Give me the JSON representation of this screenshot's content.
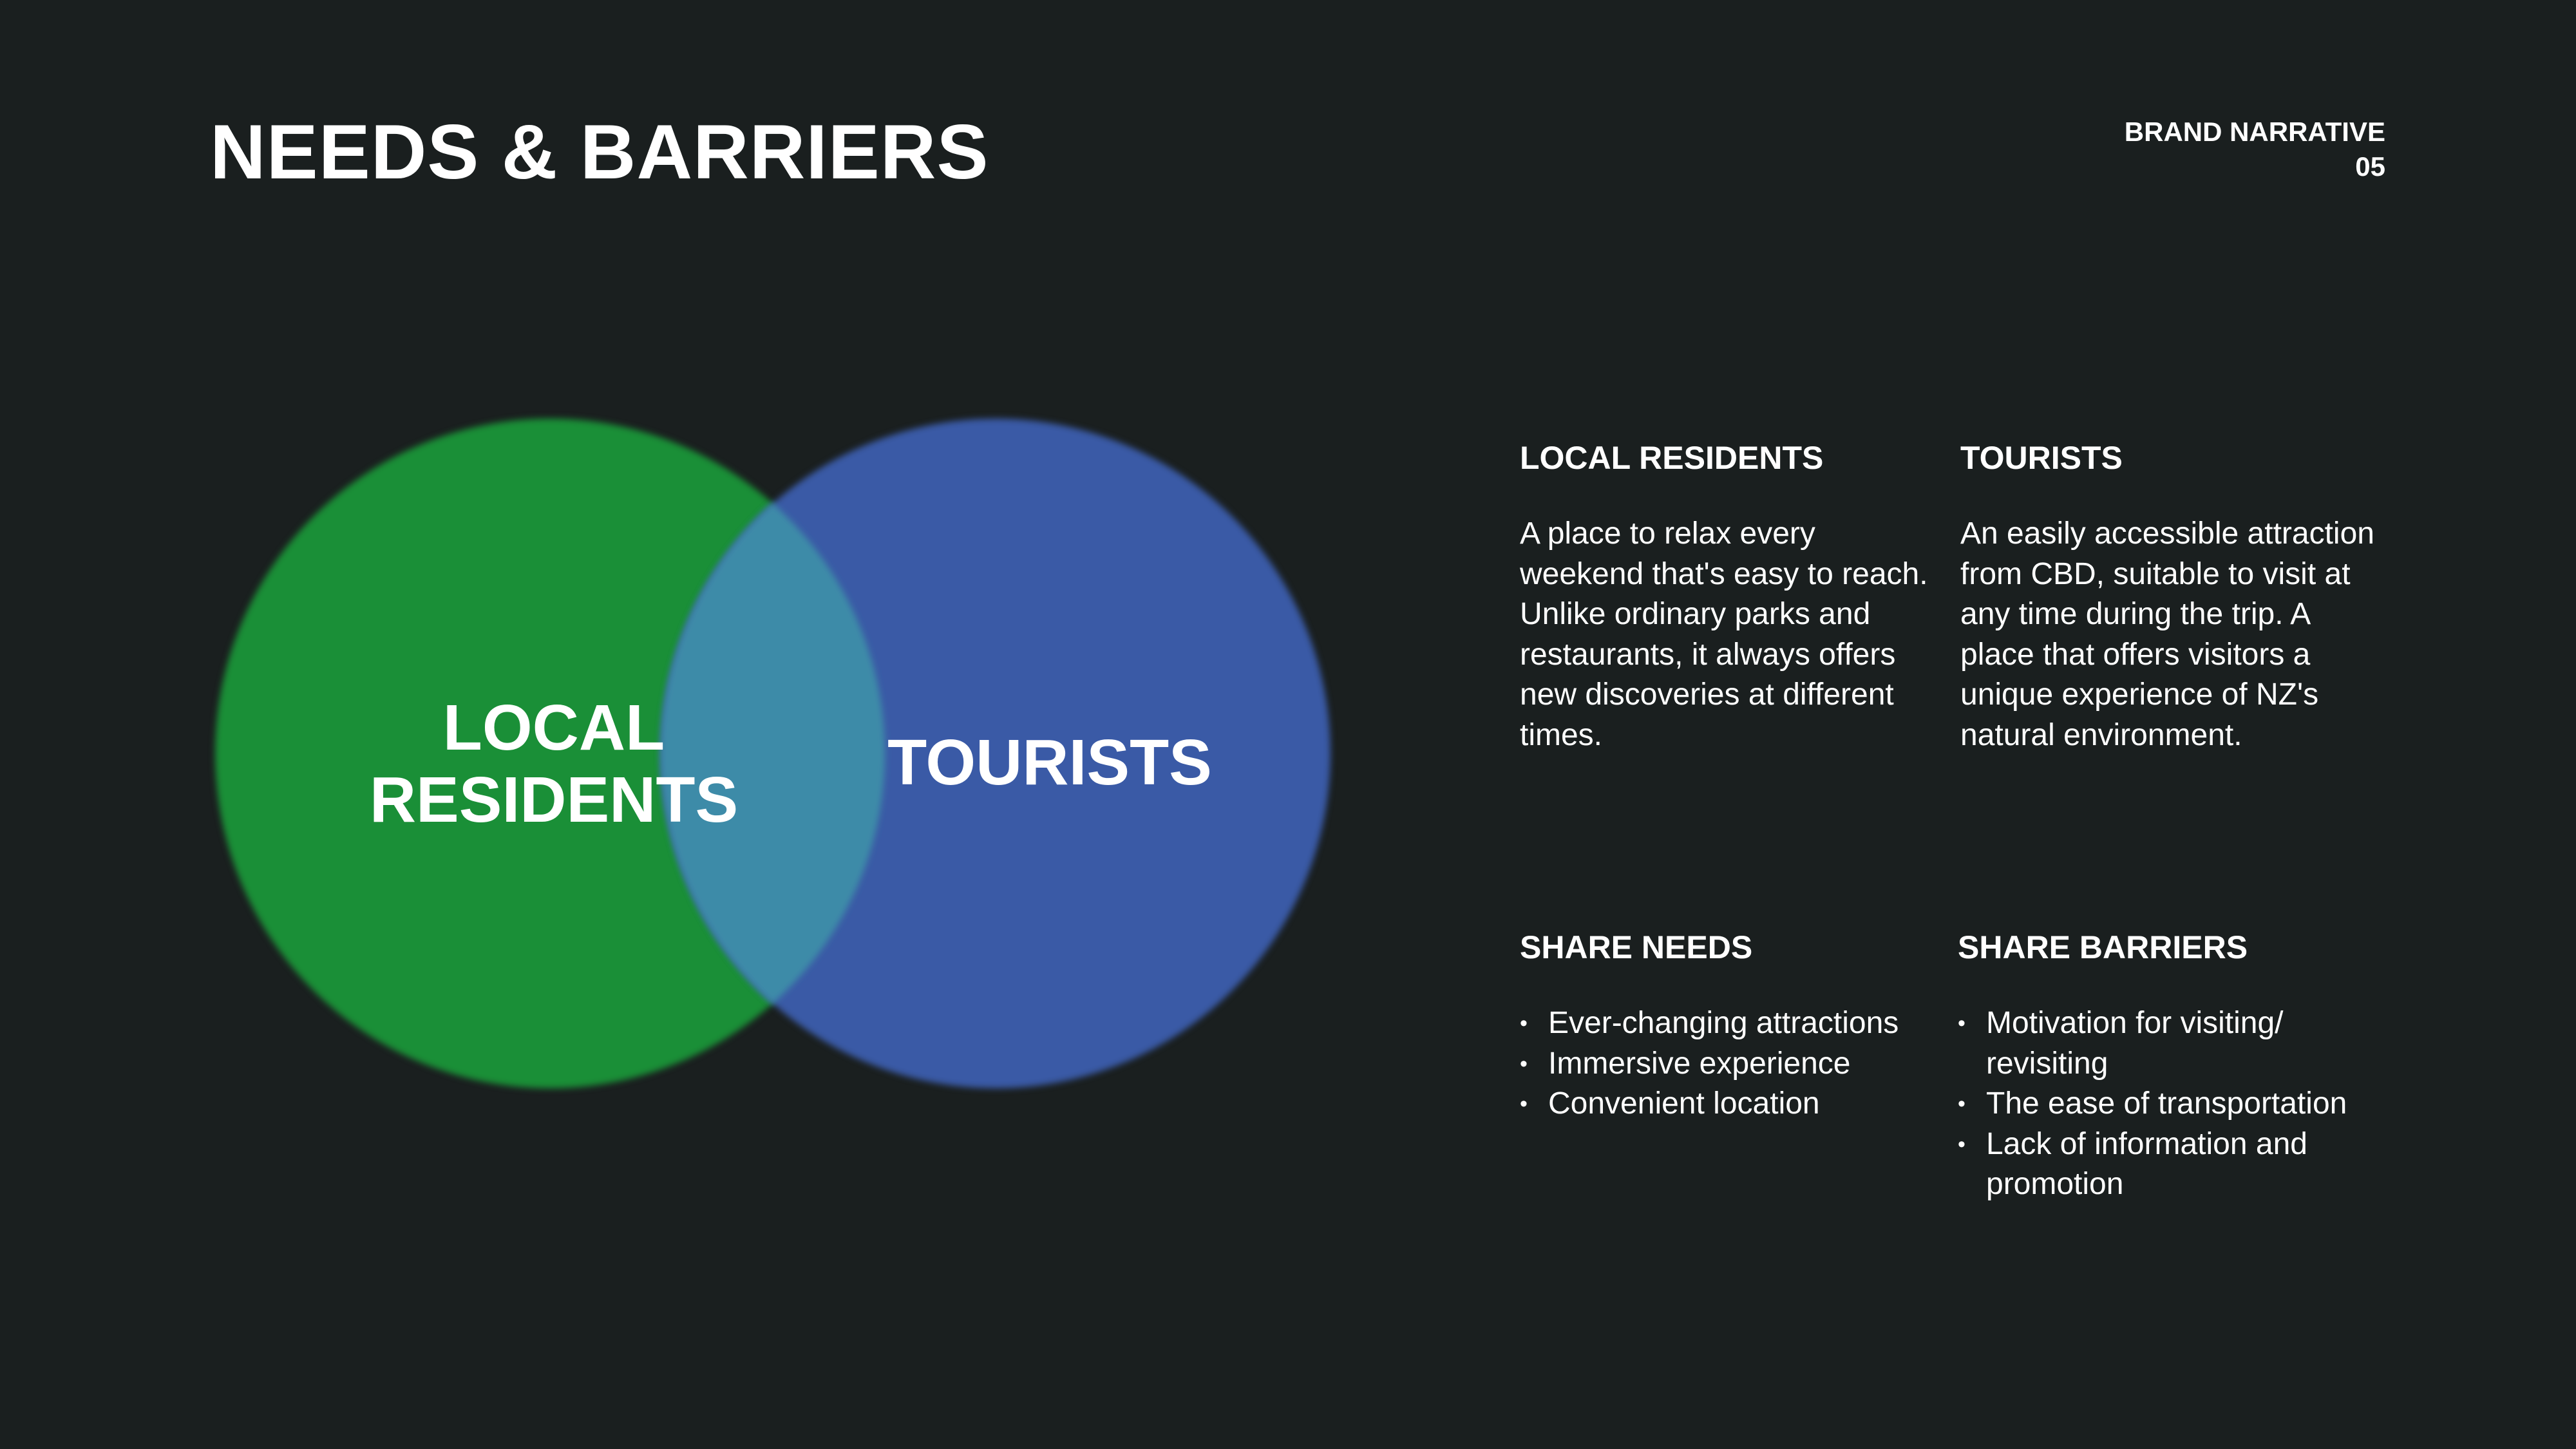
{
  "header": {
    "title": "NEEDS & BARRIERS",
    "section_name": "BRAND NARRATIVE",
    "section_number": "05"
  },
  "venn": {
    "left_label_line1": "LOCAL",
    "left_label_line2": "RESIDENTS",
    "right_label": "TOURISTS",
    "left_color": "#1a8f37",
    "right_color": "#3a5aa6",
    "overlap_color": "#3c8ba8"
  },
  "info": {
    "local_residents": {
      "heading": "LOCAL RESIDENTS",
      "text": "A place to relax every weekend that's easy to reach. Unlike ordinary parks and restaurants, it always offers new discoveries at different times."
    },
    "tourists": {
      "heading": "TOURISTS",
      "text": "An easily accessible attraction from CBD, suitable to visit at any time during the trip. A place that offers visitors a unique experience of NZ's natural environment."
    },
    "share_needs": {
      "heading": "SHARE NEEDS",
      "items": [
        "Ever-changing attractions",
        "Immersive experience",
        "Convenient location"
      ]
    },
    "share_barriers": {
      "heading": "SHARE BARRIERS",
      "items": [
        "Motivation for visiting/ revisiting",
        "The ease of transportation",
        "Lack of information and promotion"
      ]
    }
  },
  "colors": {
    "background": "#1a1f1f",
    "text": "#ffffff"
  }
}
